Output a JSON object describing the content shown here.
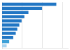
{
  "chart_data": {
    "type": "bar",
    "orientation": "horizontal",
    "categories": [
      null,
      null,
      null,
      null,
      null,
      null,
      null,
      null,
      null,
      null,
      null
    ],
    "values": [
      107120,
      79000,
      52000,
      44000,
      38500,
      34000,
      30000,
      27000,
      22000,
      14000,
      9000
    ],
    "colors": [
      "#2176c4",
      "#2176c4",
      "#2176c4",
      "#2176c4",
      "#2176c4",
      "#2176c4",
      "#2176c4",
      "#2176c4",
      "#2176c4",
      "#3da0d8",
      "#aad4ef"
    ],
    "xlim": [
      0,
      130000
    ],
    "xticks": [
      40000,
      80000,
      120000
    ],
    "grid": true,
    "tick_labels": false
  }
}
